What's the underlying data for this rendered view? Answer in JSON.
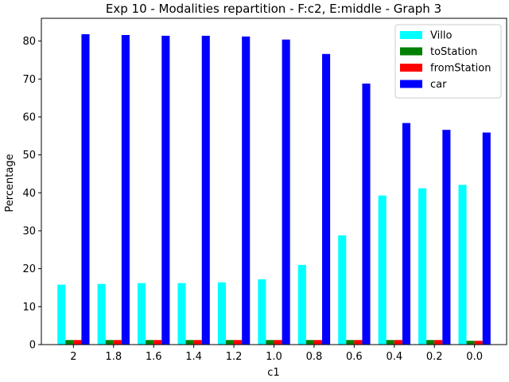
{
  "chart_data": {
    "type": "bar",
    "title": "Exp 10 - Modalities repartition - F:c2, E:middle - Graph 3",
    "xlabel": "c1",
    "ylabel": "Percentage",
    "categories": [
      "2",
      "1.8",
      "1.6",
      "1.4",
      "1.2",
      "1.0",
      "0.8",
      "0.6",
      "0.4",
      "0.2",
      "0.0"
    ],
    "ylim": [
      0,
      86
    ],
    "yticks": [
      0,
      10,
      20,
      30,
      40,
      50,
      60,
      70,
      80
    ],
    "grid": false,
    "legend_position": "top-right",
    "series": [
      {
        "name": "Villo",
        "color": "#00ffff",
        "values": [
          15.8,
          16.0,
          16.2,
          16.2,
          16.4,
          17.2,
          21.0,
          28.8,
          39.3,
          41.2,
          42.1
        ]
      },
      {
        "name": "toStation",
        "color": "#008000",
        "values": [
          1.2,
          1.2,
          1.2,
          1.2,
          1.2,
          1.2,
          1.2,
          1.2,
          1.2,
          1.2,
          1.0
        ]
      },
      {
        "name": "fromStation",
        "color": "#ff0000",
        "values": [
          1.2,
          1.2,
          1.2,
          1.2,
          1.2,
          1.2,
          1.2,
          1.2,
          1.2,
          1.2,
          1.0
        ]
      },
      {
        "name": "car",
        "color": "#0000ff",
        "values": [
          81.8,
          81.6,
          81.4,
          81.4,
          81.2,
          80.4,
          76.6,
          68.8,
          58.4,
          56.6,
          55.9
        ]
      }
    ]
  }
}
